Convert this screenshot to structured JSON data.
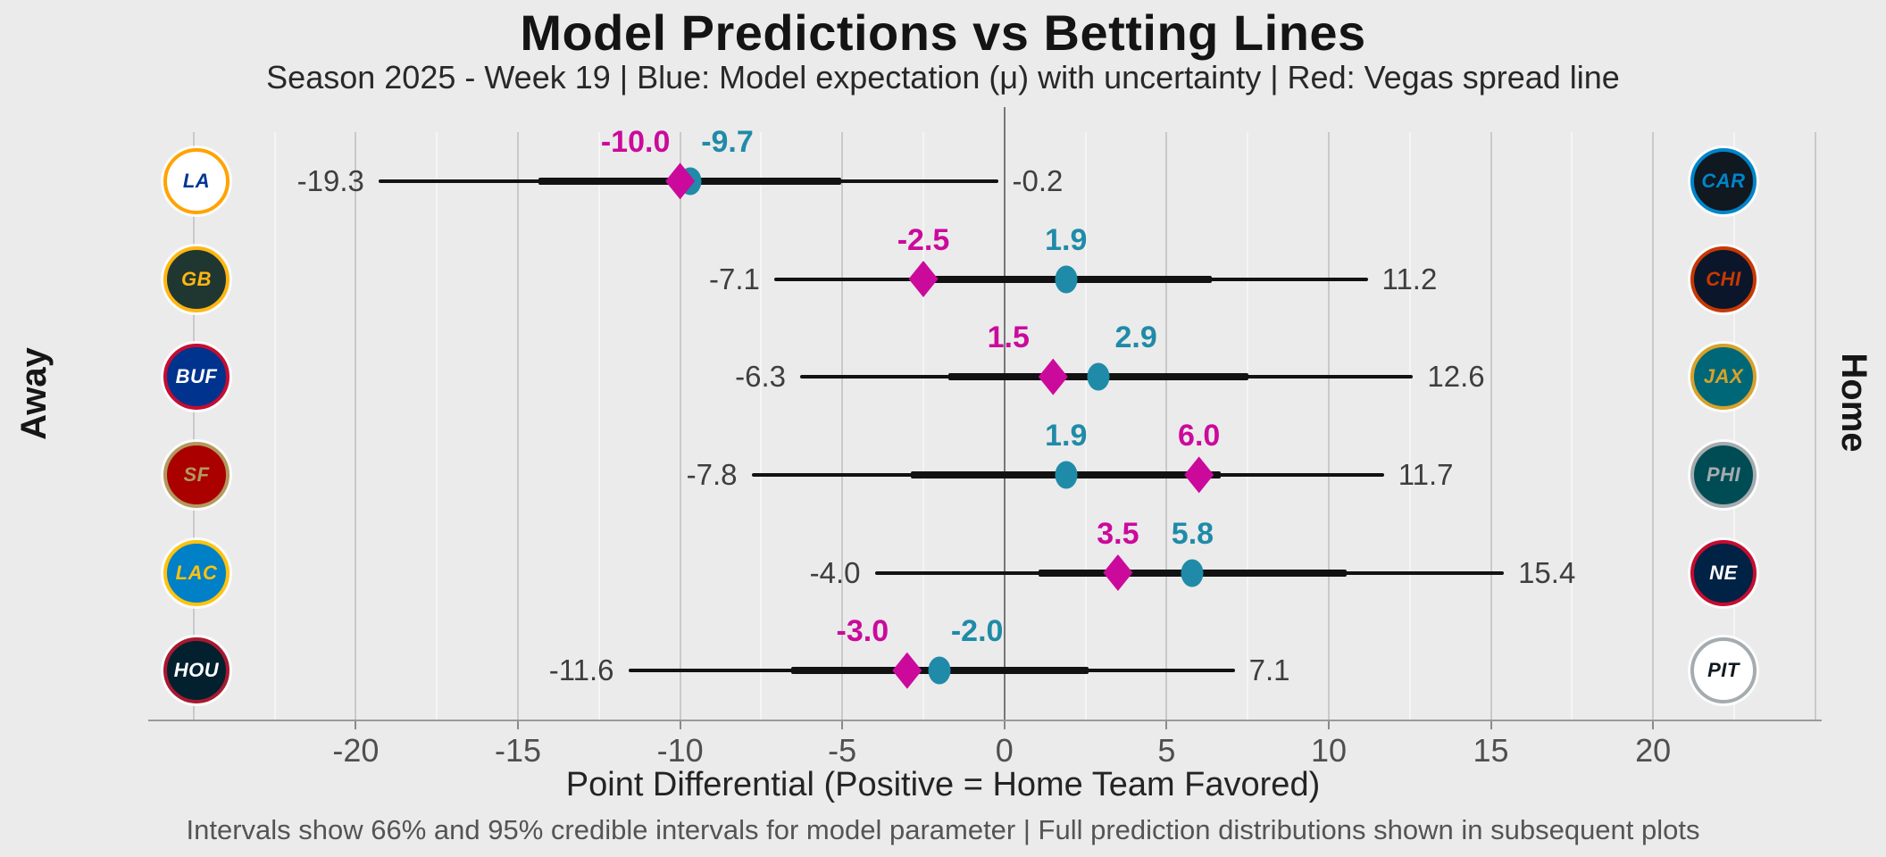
{
  "title": "Model Predictions vs Betting Lines",
  "subtitle": "Season 2025 - Week 19 | Blue: Model expectation (μ) with uncertainty | Red: Vegas spread line",
  "footnote": "Intervals show 66% and 95% credible intervals for model parameter | Full prediction distributions shown in subsequent plots",
  "axis": {
    "xlabel": "Point Differential (Positive = Home Team Favored)",
    "away_label": "Away",
    "home_label": "Home"
  },
  "colors": {
    "background": "#ebebeb",
    "model_blue": "#1f8ba8",
    "vegas_magenta": "#cb0a9c",
    "interval_line": "#121212",
    "zero_line": "#777777",
    "grid_major": "#c9c9c9",
    "grid_minor": "#f5f5f5"
  },
  "chart_data": {
    "type": "scatter",
    "subtype": "dot-interval-forest",
    "xlabel": "Point Differential (Positive = Home Team Favored)",
    "x_ticks": [
      -20,
      -15,
      -10,
      -5,
      0,
      5,
      10,
      15,
      20
    ],
    "x_range": [
      -26.4,
      25.2
    ],
    "x_minor_step": 2.5,
    "value_format": "0.1f",
    "grid": true,
    "zero_reference_line": 0,
    "series_legend": {
      "model": "Model expectation (μ) with uncertainty",
      "vegas": "Vegas spread line",
      "intervals": "66% and 95% credible intervals"
    },
    "rows": [
      {
        "away": {
          "name": "Los Angeles Rams",
          "abbr": "LA",
          "icon": "rams-logo-icon",
          "bg": "#ffffff",
          "fg": "#003594",
          "ring": "#ffa300"
        },
        "home": {
          "name": "Carolina Panthers",
          "abbr": "CAR",
          "icon": "panthers-logo-icon",
          "bg": "#101820",
          "fg": "#0085ca",
          "ring": "#0085ca"
        },
        "ci95": [
          -19.3,
          -0.2
        ],
        "vegas": -10.0,
        "model": -9.7
      },
      {
        "away": {
          "name": "Green Bay Packers",
          "abbr": "GB",
          "icon": "packers-logo-icon",
          "bg": "#203731",
          "fg": "#ffb612",
          "ring": "#ffb612"
        },
        "home": {
          "name": "Chicago Bears",
          "abbr": "CHI",
          "icon": "bears-logo-icon",
          "bg": "#0b162a",
          "fg": "#c83803",
          "ring": "#c83803"
        },
        "ci95": [
          -7.1,
          11.2
        ],
        "vegas": -2.5,
        "model": 1.9
      },
      {
        "away": {
          "name": "Buffalo Bills",
          "abbr": "BUF",
          "icon": "bills-logo-icon",
          "bg": "#00338d",
          "fg": "#ffffff",
          "ring": "#c60c30"
        },
        "home": {
          "name": "Jacksonville Jaguars",
          "abbr": "JAX",
          "icon": "jaguars-logo-icon",
          "bg": "#006778",
          "fg": "#d7a22a",
          "ring": "#d7a22a"
        },
        "ci95": [
          -6.3,
          12.6
        ],
        "vegas": 1.5,
        "model": 2.9
      },
      {
        "away": {
          "name": "San Francisco 49ers",
          "abbr": "SF",
          "icon": "49ers-logo-icon",
          "bg": "#aa0000",
          "fg": "#b3995d",
          "ring": "#b3995d"
        },
        "home": {
          "name": "Philadelphia Eagles",
          "abbr": "PHI",
          "icon": "eagles-logo-icon",
          "bg": "#004c54",
          "fg": "#a5acaf",
          "ring": "#a5acaf"
        },
        "ci95": [
          -7.8,
          11.7
        ],
        "vegas": 6.0,
        "model": 1.9
      },
      {
        "away": {
          "name": "Los Angeles Chargers",
          "abbr": "LAC",
          "icon": "chargers-logo-icon",
          "bg": "#0080c6",
          "fg": "#ffc20e",
          "ring": "#ffc20e"
        },
        "home": {
          "name": "New England Patriots",
          "abbr": "NE",
          "icon": "patriots-logo-icon",
          "bg": "#002244",
          "fg": "#ffffff",
          "ring": "#c60c30"
        },
        "ci95": [
          -4.0,
          15.4
        ],
        "vegas": 3.5,
        "model": 5.8
      },
      {
        "away": {
          "name": "Houston Texans",
          "abbr": "HOU",
          "icon": "texans-logo-icon",
          "bg": "#03202f",
          "fg": "#ffffff",
          "ring": "#a71930"
        },
        "home": {
          "name": "Pittsburgh Steelers",
          "abbr": "PIT",
          "icon": "steelers-logo-icon",
          "bg": "#ffffff",
          "fg": "#101820",
          "ring": "#a5acaf"
        },
        "ci95": [
          -11.6,
          7.1
        ],
        "vegas": -3.0,
        "model": -2.0
      }
    ]
  }
}
